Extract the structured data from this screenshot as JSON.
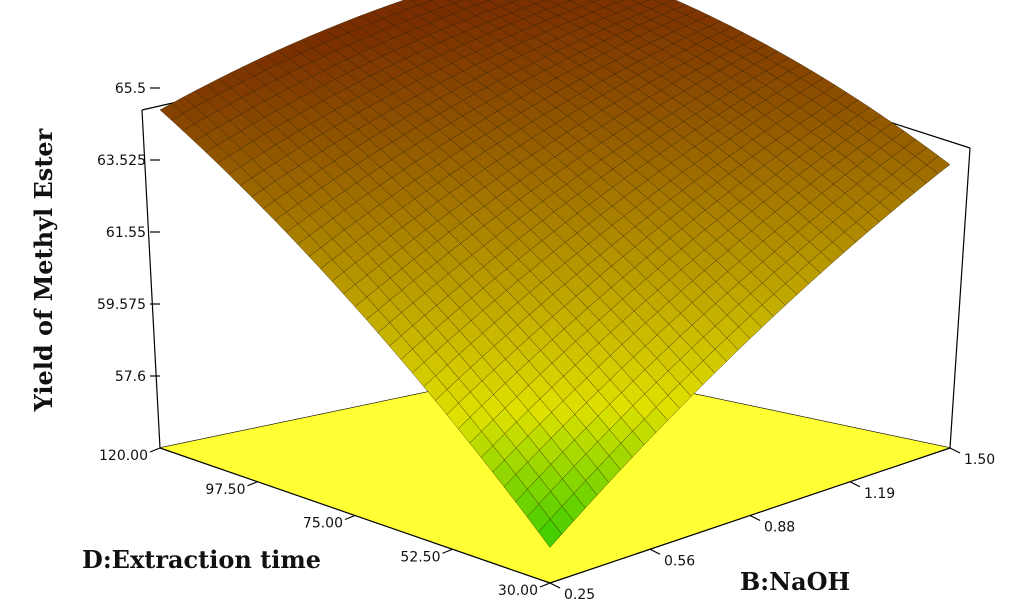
{
  "chart_data": {
    "type": "surface",
    "title": "",
    "zlabel": "Yield of Methyl Ester",
    "xlabel": "D:Extraction time",
    "ylabel": "B:NaOH",
    "x_ticks": [
      "30.00",
      "52.50",
      "75.00",
      "97.50",
      "120.00"
    ],
    "y_ticks": [
      "0.25",
      "0.56",
      "0.88",
      "1.19",
      "1.50"
    ],
    "z_ticks": [
      "57.6",
      "59.575",
      "61.55",
      "63.525",
      "65.5"
    ],
    "xlim": [
      30,
      120
    ],
    "ylim": [
      0.25,
      1.5
    ],
    "zlim": [
      55.625,
      65.5
    ],
    "corner_values": [
      {
        "x": 30,
        "y": 0.25,
        "z": 56.6
      },
      {
        "x": 120,
        "y": 0.25,
        "z": 64.9
      },
      {
        "x": 30,
        "y": 1.5,
        "z": 63.4
      },
      {
        "x": 120,
        "y": 1.5,
        "z": 65.4
      }
    ],
    "surface_colors": {
      "low": "#33cc00",
      "mid": "#e0e000",
      "high": "#7a2e00"
    },
    "floor_color": "#ffff33",
    "grid": false
  }
}
